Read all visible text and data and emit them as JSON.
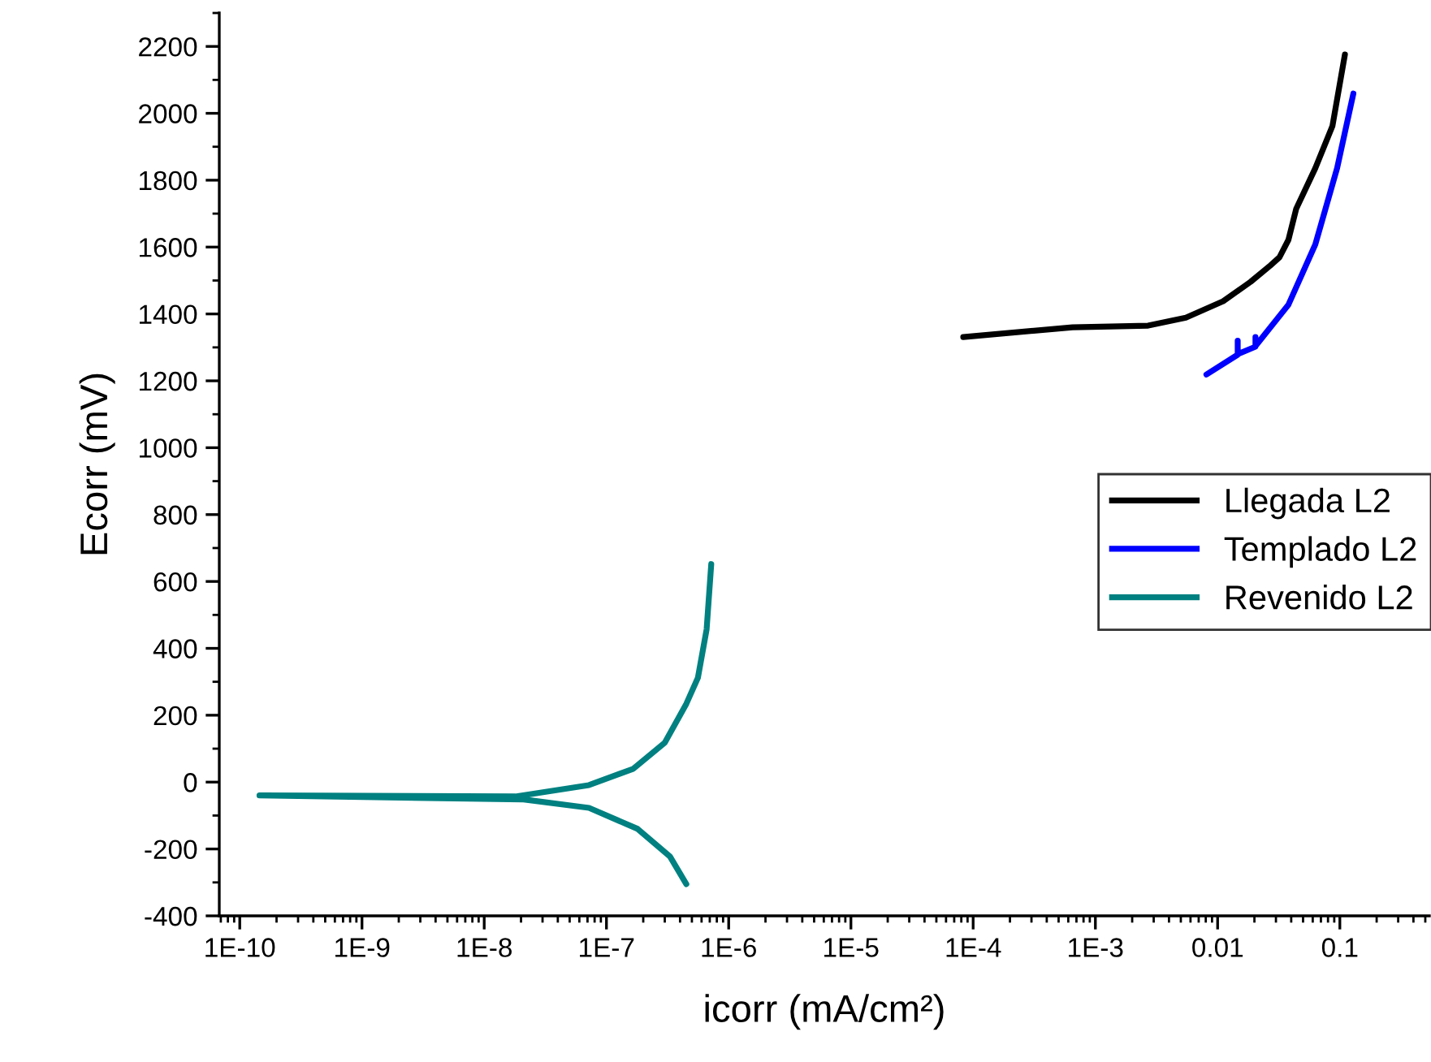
{
  "chart_data": {
    "type": "line",
    "xlabel": "icorr (mA/cm²)",
    "ylabel": "Ecorr (mV)",
    "log": "x",
    "xlim": [
      6.8e-11,
      0.54
    ],
    "ylim": [
      -400,
      2300
    ],
    "xticks": [
      {
        "value": 1e-10,
        "label": "1E-10"
      },
      {
        "value": 1e-09,
        "label": "1E-9"
      },
      {
        "value": 1e-08,
        "label": "1E-8"
      },
      {
        "value": 1e-07,
        "label": "1E-7"
      },
      {
        "value": 1e-06,
        "label": "1E-6"
      },
      {
        "value": 1e-05,
        "label": "1E-5"
      },
      {
        "value": 0.0001,
        "label": "1E-4"
      },
      {
        "value": 0.001,
        "label": "1E-3"
      },
      {
        "value": 0.01,
        "label": "0.01"
      },
      {
        "value": 0.1,
        "label": "0.1"
      }
    ],
    "yticks": [
      -400,
      -200,
      0,
      200,
      400,
      600,
      800,
      1000,
      1200,
      1400,
      1600,
      1800,
      2000,
      2200
    ],
    "grid": false,
    "legend": "right",
    "marker": "none",
    "line_style": "solid",
    "series": [
      {
        "name": "Llegada L2",
        "color": "#000000",
        "x": [
          8.3e-05,
          0.00065,
          0.0027,
          0.0055,
          0.0111,
          0.0186,
          0.027,
          0.032,
          0.038,
          0.044,
          0.063,
          0.087,
          0.11
        ],
        "values": [
          1331,
          1360,
          1365,
          1389,
          1438,
          1496,
          1545,
          1569,
          1622,
          1715,
          1836,
          1962,
          2176
        ]
      },
      {
        "name": "Templado L2",
        "color": "#0000ff",
        "x": [
          0.0081,
          0.0146,
          0.0146,
          0.0146,
          0.0204,
          0.0204,
          0.0204,
          0.038,
          0.063,
          0.095,
          0.129
        ],
        "values": [
          1219,
          1278,
          1320,
          1280,
          1302,
          1331,
          1304,
          1428,
          1608,
          1836,
          2059
        ]
      },
      {
        "name": "Revenido L2",
        "color": "#008080",
        "x": [
          4.5e-07,
          3.3e-07,
          1.8e-07,
          7.2e-08,
          2.1e-08,
          1.45e-10,
          1.8e-08,
          7.2e-08,
          1.66e-07,
          3e-07,
          4.5e-07,
          5.6e-07,
          6.6e-07,
          7.2e-07
        ],
        "values": [
          -305,
          -222,
          -140,
          -77,
          -52,
          -40,
          -43,
          -9,
          40,
          118,
          234,
          312,
          457,
          652
        ]
      }
    ]
  }
}
